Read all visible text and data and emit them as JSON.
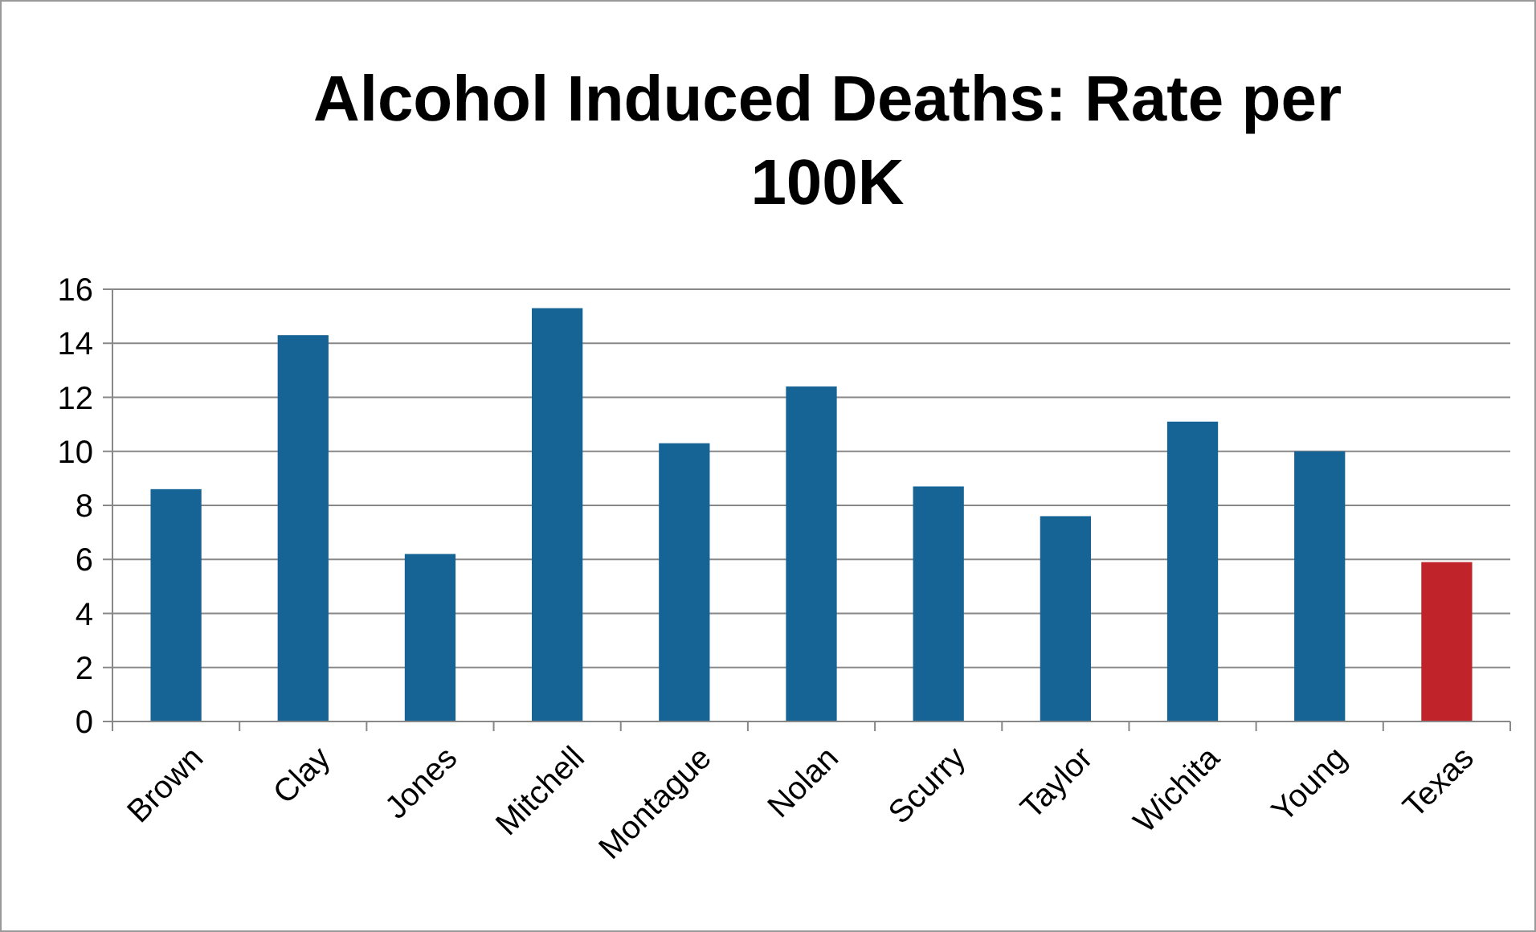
{
  "chart_data": {
    "type": "bar",
    "title": "Alcohol Induced Deaths: Rate per 100K",
    "categories": [
      "Brown",
      "Clay",
      "Jones",
      "Mitchell",
      "Montague",
      "Nolan",
      "Scurry",
      "Taylor",
      "Wichita",
      "Young",
      "Texas"
    ],
    "values": [
      8.6,
      14.3,
      6.2,
      15.3,
      10.3,
      12.4,
      8.7,
      7.6,
      11.1,
      10.0,
      5.9
    ],
    "colors": [
      "#166496",
      "#166496",
      "#166496",
      "#166496",
      "#166496",
      "#166496",
      "#166496",
      "#166496",
      "#166496",
      "#166496",
      "#c0232a"
    ],
    "ylim": [
      0,
      16
    ],
    "yticks": [
      0,
      2,
      4,
      6,
      8,
      10,
      12,
      14,
      16
    ],
    "grid": "y"
  }
}
